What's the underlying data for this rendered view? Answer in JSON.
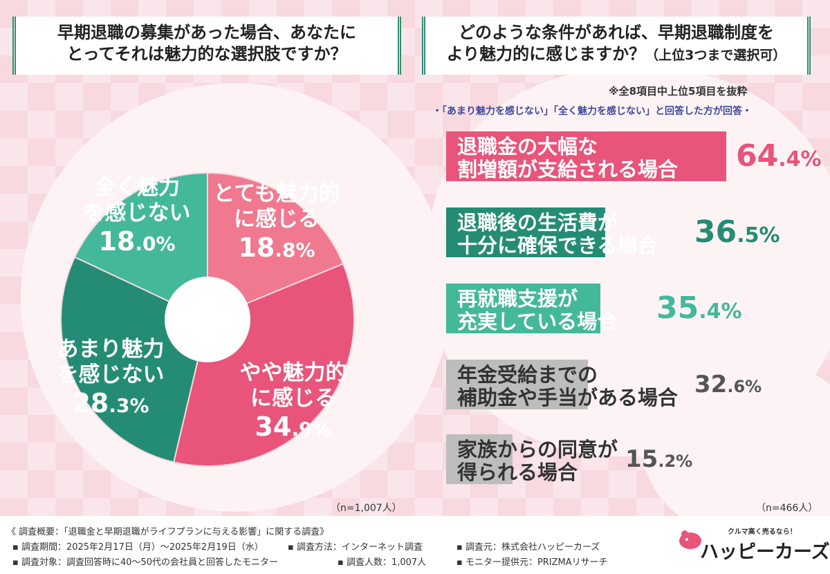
{
  "left": {
    "question_line1": "早期退職の募集があった場合、あなたに",
    "question_line2": "とってそれは魅力的な選択肢ですか？",
    "n": "（n=1,007人）"
  },
  "right": {
    "question_line1": "どのような条件があれば、早期退職制度を",
    "question_line2": "より魅力的に感じますか？",
    "question_sub": "（上位3つまで選択可）",
    "note1": "※全8項目中上位5項目を抜粋",
    "note2": "・「あまり魅力を感じない」「全く魅力を感じない」と回答した方が回答・",
    "n": "（n=466人）"
  },
  "chart_data": [
    {
      "type": "pie",
      "slices": [
        {
          "label_line1": "とても魅力的",
          "label_line2": "に感じる",
          "value": 18.8,
          "value_int": "18",
          "value_dec": ".8%",
          "color": "#f0788f"
        },
        {
          "label_line1": "やや魅力的",
          "label_line2": "に感じる",
          "value": 34.9,
          "value_int": "34",
          "value_dec": ".9%",
          "color": "#e8547a"
        },
        {
          "label_line1": "あまり魅力",
          "label_line2": "を感じない",
          "value": 28.3,
          "value_int": "28",
          "value_dec": ".3%",
          "color": "#248c74"
        },
        {
          "label_line1": "全く魅力",
          "label_line2": "を感じない",
          "value": 18.0,
          "value_int": "18",
          "value_dec": ".0%",
          "color": "#44b89a"
        }
      ]
    },
    {
      "type": "bar",
      "orientation": "horizontal",
      "bars": [
        {
          "label_line1": "退職金の大幅な",
          "label_line2": "割増額が支給される場合",
          "value": 64.4,
          "value_int": "64",
          "value_dec": ".4%",
          "color": "#e8547a",
          "text_color": "#ffffff",
          "value_color": "#e8547a"
        },
        {
          "label_line1": "退職後の生活費が",
          "label_line2": "十分に確保できる場合",
          "value": 36.5,
          "value_int": "36",
          "value_dec": ".5%",
          "color": "#248c74",
          "text_color": "#ffffff",
          "value_color": "#248c74"
        },
        {
          "label_line1": "再就職支援が",
          "label_line2": "充実している場合",
          "value": 35.4,
          "value_int": "35",
          "value_dec": ".4%",
          "color": "#44b89a",
          "text_color": "#ffffff",
          "value_color": "#44b89a"
        },
        {
          "label_line1": "年金受給までの",
          "label_line2": "補助金や手当がある場合",
          "value": 32.6,
          "value_int": "32",
          "value_dec": ".6%",
          "color": "#bdbdbd",
          "text_color": "#333333",
          "value_color": "#555555"
        },
        {
          "label_line1": "家族からの同意が",
          "label_line2": "得られる場合",
          "value": 15.2,
          "value_int": "15",
          "value_dec": ".2%",
          "color": "#bdbdbd",
          "text_color": "#333333",
          "value_color": "#555555"
        }
      ]
    }
  ],
  "footer": {
    "line1": "《 調査概要：「退職金と早期退職がライフプランに与える影響」に関する調査》",
    "line2a": "▪ 調査期間：2025年2月17日（月）～2025年2月19日（水）",
    "line2b": "▪ 調査方法：インターネット調査",
    "line2c": "▪ 調査元：株式会社ハッピーカーズ",
    "line3a": "▪ 調査対象：調査回答時に40～50代の会社員と回答したモニター",
    "line3b": "▪ 調査人数：1,007人",
    "line3c": "▪ モニター提供元：PRIZMAリサーチ"
  },
  "logo": {
    "tagline": "クルマ高く売るなら！",
    "name": "ハッピーカーズ"
  }
}
